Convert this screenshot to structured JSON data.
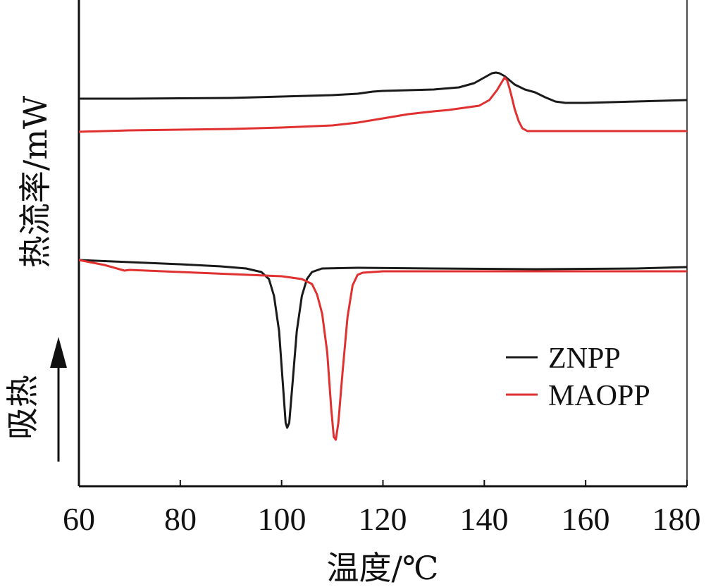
{
  "chart_data": {
    "type": "line",
    "title": "",
    "xlabel": "温度/℃",
    "ylabel": "热流率/mW",
    "endotherm_label": "吸热",
    "xlim": [
      60,
      180
    ],
    "x_ticks": [
      "60",
      "80",
      "100",
      "120",
      "140",
      "160",
      "180"
    ],
    "y_ticks_shown": false,
    "grid": false,
    "legend_position": "lower-right",
    "series": [
      {
        "name": "ZNPP",
        "color": "#1a1a1a",
        "curve": "heating",
        "points": [
          [
            60,
            140
          ],
          [
            70,
            140
          ],
          [
            80,
            139.5
          ],
          [
            90,
            139
          ],
          [
            100,
            137
          ],
          [
            110,
            135
          ],
          [
            115,
            133
          ],
          [
            118,
            130
          ],
          [
            120,
            129
          ],
          [
            130,
            127
          ],
          [
            135,
            124
          ],
          [
            138,
            118
          ],
          [
            140,
            110
          ],
          [
            141.5,
            104
          ],
          [
            142.3,
            103
          ],
          [
            143,
            104
          ],
          [
            144,
            108
          ],
          [
            146,
            120
          ],
          [
            148,
            127
          ],
          [
            150,
            131
          ],
          [
            152,
            138
          ],
          [
            154,
            144
          ],
          [
            156,
            146
          ],
          [
            160,
            146
          ],
          [
            170,
            144
          ],
          [
            180,
            142
          ]
        ]
      },
      {
        "name": "MAOPP",
        "color": "#e03030",
        "curve": "heating",
        "points": [
          [
            60,
            187
          ],
          [
            70,
            185
          ],
          [
            80,
            184
          ],
          [
            90,
            183
          ],
          [
            100,
            181
          ],
          [
            110,
            178
          ],
          [
            115,
            174
          ],
          [
            120,
            168
          ],
          [
            125,
            162
          ],
          [
            130,
            158
          ],
          [
            133,
            156
          ],
          [
            136,
            153
          ],
          [
            139,
            150
          ],
          [
            141,
            142
          ],
          [
            142.5,
            128
          ],
          [
            143.5,
            116
          ],
          [
            144,
            110
          ],
          [
            144.5,
            114
          ],
          [
            145,
            126
          ],
          [
            145.5,
            140
          ],
          [
            146,
            155
          ],
          [
            146.8,
            172
          ],
          [
            147.5,
            182
          ],
          [
            148.5,
            186
          ],
          [
            155,
            186
          ],
          [
            180,
            186
          ]
        ]
      },
      {
        "name": "ZNPP",
        "color": "#1a1a1a",
        "curve": "cooling",
        "points": [
          [
            60,
            369
          ],
          [
            70,
            372
          ],
          [
            80,
            375
          ],
          [
            88,
            378
          ],
          [
            93,
            381
          ],
          [
            96,
            386
          ],
          [
            97.5,
            396
          ],
          [
            98.5,
            420
          ],
          [
            99.5,
            470
          ],
          [
            100.2,
            540
          ],
          [
            100.8,
            600
          ],
          [
            101.1,
            607
          ],
          [
            101.5,
            600
          ],
          [
            102.2,
            540
          ],
          [
            103,
            470
          ],
          [
            104,
            420
          ],
          [
            105,
            396
          ],
          [
            106,
            386
          ],
          [
            108,
            381
          ],
          [
            115,
            380
          ],
          [
            130,
            381
          ],
          [
            150,
            382
          ],
          [
            170,
            381
          ],
          [
            180,
            379
          ]
        ]
      },
      {
        "name": "MAOPP",
        "color": "#e03030",
        "curve": "cooling",
        "points": [
          [
            60,
            369
          ],
          [
            65,
            376
          ],
          [
            69,
            384
          ],
          [
            70,
            383
          ],
          [
            80,
            386
          ],
          [
            90,
            389
          ],
          [
            100,
            392
          ],
          [
            104,
            396
          ],
          [
            106,
            403
          ],
          [
            107,
            418
          ],
          [
            108,
            445
          ],
          [
            109,
            500
          ],
          [
            109.8,
            580
          ],
          [
            110.3,
            620
          ],
          [
            110.7,
            624
          ],
          [
            111.2,
            600
          ],
          [
            112,
            530
          ],
          [
            113,
            450
          ],
          [
            114,
            405
          ],
          [
            115,
            390
          ],
          [
            116,
            387
          ],
          [
            120,
            385
          ],
          [
            140,
            385
          ],
          [
            160,
            385
          ],
          [
            180,
            385
          ]
        ]
      }
    ]
  }
}
